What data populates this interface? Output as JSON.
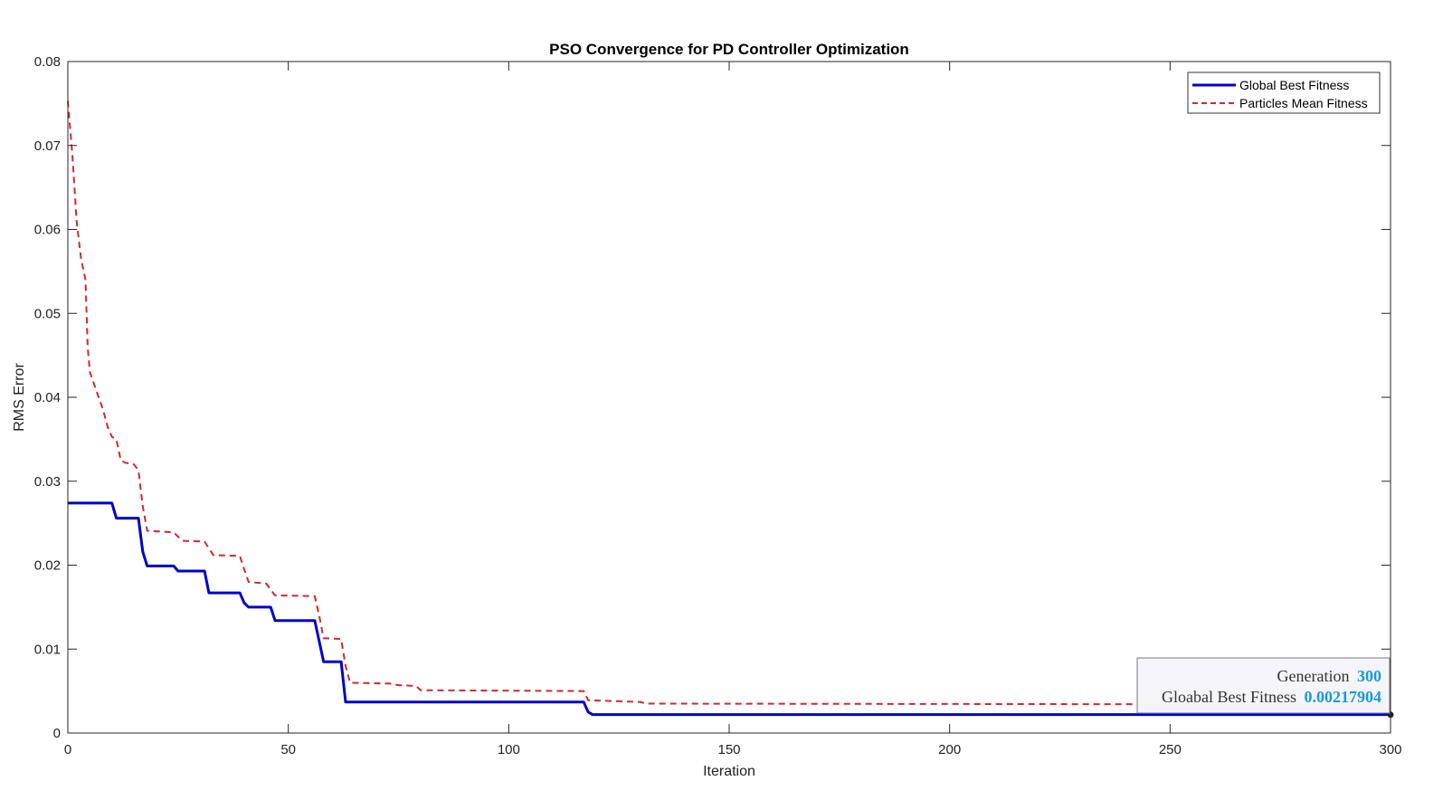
{
  "chart_data": {
    "type": "line",
    "title": "PSO Convergence for PD Controller Optimization",
    "xlabel": "Iteration",
    "ylabel": "RMS Error",
    "xlim": [
      0,
      300
    ],
    "ylim": [
      0,
      0.08
    ],
    "xticks": [
      0,
      50,
      100,
      150,
      200,
      250,
      300
    ],
    "xtick_labels": [
      "0",
      "50",
      "100",
      "150",
      "200",
      "250",
      "300"
    ],
    "yticks": [
      0,
      0.01,
      0.02,
      0.03,
      0.04,
      0.05,
      0.06,
      0.07,
      0.08
    ],
    "ytick_labels": [
      "0",
      "0.01",
      "0.02",
      "0.03",
      "0.04",
      "0.05",
      "0.06",
      "0.07",
      "0.08"
    ],
    "grid": false,
    "legend_position": "top-right",
    "series": [
      {
        "name": "Global Best Fitness",
        "color": "#0000cd",
        "style": "solid",
        "points": [
          [
            0,
            0.0274
          ],
          [
            10,
            0.0274
          ],
          [
            11,
            0.0256
          ],
          [
            16,
            0.0256
          ],
          [
            17,
            0.0216
          ],
          [
            18,
            0.0199
          ],
          [
            24,
            0.0199
          ],
          [
            25,
            0.0193
          ],
          [
            31,
            0.0193
          ],
          [
            32,
            0.0167
          ],
          [
            39,
            0.0167
          ],
          [
            40,
            0.0155
          ],
          [
            41,
            0.015
          ],
          [
            46,
            0.015
          ],
          [
            47,
            0.0134
          ],
          [
            56,
            0.0134
          ],
          [
            58,
            0.0085
          ],
          [
            62,
            0.0085
          ],
          [
            63,
            0.0037
          ],
          [
            117,
            0.0037
          ],
          [
            118,
            0.0025
          ],
          [
            119,
            0.0022
          ],
          [
            300,
            0.0022
          ]
        ]
      },
      {
        "name": "Particles Mean Fitness",
        "color": "#d62728",
        "style": "dashed",
        "points": [
          [
            0,
            0.0753
          ],
          [
            1,
            0.069
          ],
          [
            2,
            0.061
          ],
          [
            3,
            0.0565
          ],
          [
            4,
            0.054
          ],
          [
            4.5,
            0.046
          ],
          [
            5,
            0.043
          ],
          [
            6,
            0.0415
          ],
          [
            7,
            0.04
          ],
          [
            8,
            0.0385
          ],
          [
            9,
            0.0365
          ],
          [
            10,
            0.0353
          ],
          [
            11,
            0.035
          ],
          [
            12,
            0.0325
          ],
          [
            13,
            0.0322
          ],
          [
            15,
            0.032
          ],
          [
            16,
            0.0313
          ],
          [
            17,
            0.027
          ],
          [
            18,
            0.0241
          ],
          [
            24,
            0.0239
          ],
          [
            26,
            0.0229
          ],
          [
            31,
            0.0228
          ],
          [
            33,
            0.0212
          ],
          [
            39,
            0.0211
          ],
          [
            40,
            0.0195
          ],
          [
            41,
            0.018
          ],
          [
            45,
            0.0178
          ],
          [
            47,
            0.0164
          ],
          [
            56,
            0.0163
          ],
          [
            57,
            0.014
          ],
          [
            58,
            0.0113
          ],
          [
            62,
            0.0112
          ],
          [
            63,
            0.008
          ],
          [
            64,
            0.006
          ],
          [
            73,
            0.0059
          ],
          [
            75,
            0.0057
          ],
          [
            79,
            0.0056
          ],
          [
            80,
            0.0051
          ],
          [
            117,
            0.005
          ],
          [
            118,
            0.0039
          ],
          [
            130,
            0.0037
          ],
          [
            131,
            0.0035
          ],
          [
            300,
            0.0034
          ]
        ]
      }
    ],
    "datatip": {
      "line1_label": "Generation",
      "line1_value": "300",
      "line2_label": "Gloabal Best Fitness",
      "line2_value": "0.00217904",
      "anchor": [
        300,
        0.00217904
      ]
    }
  }
}
